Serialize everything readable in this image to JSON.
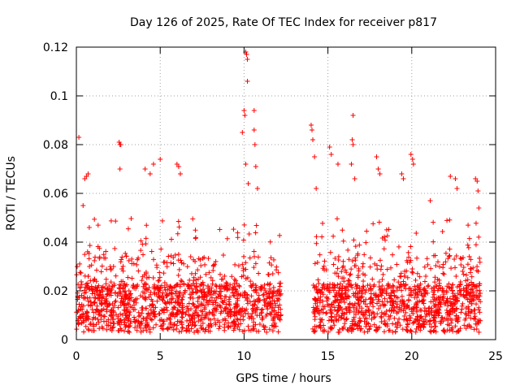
{
  "chart_data": {
    "type": "scatter",
    "title": "Day 126 of 2025, Rate Of TEC Index for receiver p817",
    "xlabel": "GPS time / hours",
    "ylabel": "ROTI / TECUs",
    "xlim": [
      0,
      25
    ],
    "ylim": [
      0,
      0.12
    ],
    "xticks": [
      0,
      5,
      10,
      15,
      20,
      25
    ],
    "xtick_labels": [
      "0",
      "5",
      "10",
      "15",
      "20",
      "25"
    ],
    "yticks": [
      0,
      0.02,
      0.04,
      0.06,
      0.08,
      0.1,
      0.12
    ],
    "ytick_labels": [
      "0",
      "0.02",
      "0.04",
      "0.06",
      "0.08",
      "0.1",
      "0.12"
    ],
    "grid": true,
    "marker": "+",
    "marker_color": "#ff0000",
    "data_gap_hours": [
      12.2,
      14.1
    ],
    "series": [
      {
        "name": "ROTI",
        "outliers": [
          [
            0.15,
            0.083
          ],
          [
            0.4,
            0.055
          ],
          [
            0.5,
            0.066
          ],
          [
            0.6,
            0.067
          ],
          [
            0.7,
            0.068
          ],
          [
            2.55,
            0.081
          ],
          [
            2.6,
            0.08
          ],
          [
            2.65,
            0.08
          ],
          [
            2.6,
            0.07
          ],
          [
            4.1,
            0.07
          ],
          [
            4.4,
            0.068
          ],
          [
            4.6,
            0.072
          ],
          [
            5.0,
            0.074
          ],
          [
            6.0,
            0.072
          ],
          [
            6.1,
            0.071
          ],
          [
            6.2,
            0.068
          ],
          [
            9.9,
            0.085
          ],
          [
            10.0,
            0.094
          ],
          [
            10.05,
            0.092
          ],
          [
            10.1,
            0.072
          ],
          [
            10.1,
            0.118
          ],
          [
            10.15,
            0.117
          ],
          [
            10.2,
            0.115
          ],
          [
            10.2,
            0.106
          ],
          [
            10.25,
            0.064
          ],
          [
            10.6,
            0.094
          ],
          [
            10.6,
            0.086
          ],
          [
            10.65,
            0.08
          ],
          [
            10.7,
            0.071
          ],
          [
            10.8,
            0.062
          ],
          [
            14.0,
            0.088
          ],
          [
            14.05,
            0.086
          ],
          [
            14.1,
            0.082
          ],
          [
            14.2,
            0.075
          ],
          [
            14.3,
            0.062
          ],
          [
            15.1,
            0.079
          ],
          [
            15.2,
            0.076
          ],
          [
            15.6,
            0.072
          ],
          [
            16.5,
            0.092
          ],
          [
            16.45,
            0.082
          ],
          [
            16.5,
            0.08
          ],
          [
            16.4,
            0.072
          ],
          [
            16.6,
            0.066
          ],
          [
            17.9,
            0.075
          ],
          [
            18.0,
            0.07
          ],
          [
            18.1,
            0.068
          ],
          [
            19.4,
            0.068
          ],
          [
            19.5,
            0.066
          ],
          [
            19.95,
            0.076
          ],
          [
            20.05,
            0.074
          ],
          [
            20.1,
            0.072
          ],
          [
            21.1,
            0.057
          ],
          [
            22.3,
            0.067
          ],
          [
            22.6,
            0.066
          ],
          [
            22.7,
            0.062
          ],
          [
            23.8,
            0.066
          ],
          [
            23.9,
            0.065
          ],
          [
            23.95,
            0.061
          ],
          [
            24.0,
            0.054
          ]
        ]
      }
    ]
  }
}
